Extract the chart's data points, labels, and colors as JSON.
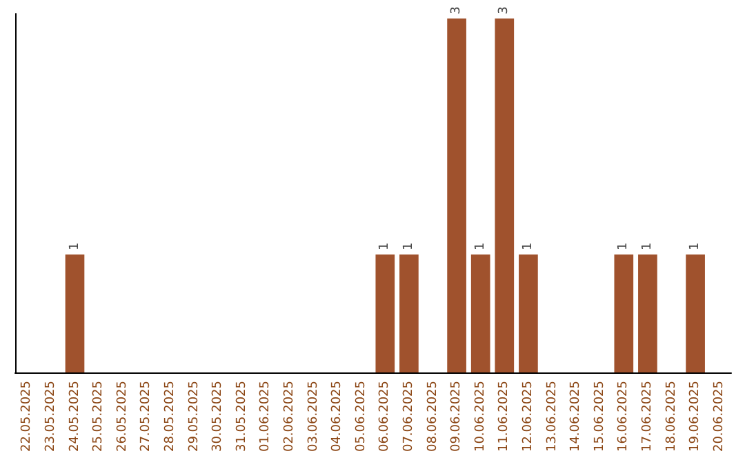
{
  "chart_data": {
    "type": "bar",
    "categories": [
      "22.05.2025",
      "23.05.2025",
      "24.05.2025",
      "25.05.2025",
      "26.05.2025",
      "27.05.2025",
      "28.05.2025",
      "29.05.2025",
      "30.05.2025",
      "31.05.2025",
      "01.06.2025",
      "02.06.2025",
      "03.06.2025",
      "04.06.2025",
      "05.06.2025",
      "06.06.2025",
      "07.06.2025",
      "08.06.2025",
      "09.06.2025",
      "10.06.2025",
      "11.06.2025",
      "12.06.2025",
      "13.06.2025",
      "14.06.2025",
      "15.06.2025",
      "16.06.2025",
      "17.06.2025",
      "18.06.2025",
      "19.06.2025",
      "20.06.2025"
    ],
    "values": [
      0,
      0,
      1,
      0,
      0,
      0,
      0,
      0,
      0,
      0,
      0,
      0,
      0,
      0,
      0,
      1,
      1,
      0,
      3,
      1,
      3,
      1,
      0,
      0,
      0,
      1,
      1,
      0,
      1,
      0
    ],
    "value_labels": [
      null,
      null,
      "1",
      null,
      null,
      null,
      null,
      null,
      null,
      null,
      null,
      null,
      null,
      null,
      null,
      "1",
      "1",
      null,
      "3",
      "1",
      "3",
      "1",
      null,
      null,
      null,
      "1",
      "1",
      null,
      "1",
      null
    ],
    "color": "#a0522d",
    "ylim": [
      0,
      3.04
    ],
    "tick_labels": "x",
    "grid": false
  }
}
